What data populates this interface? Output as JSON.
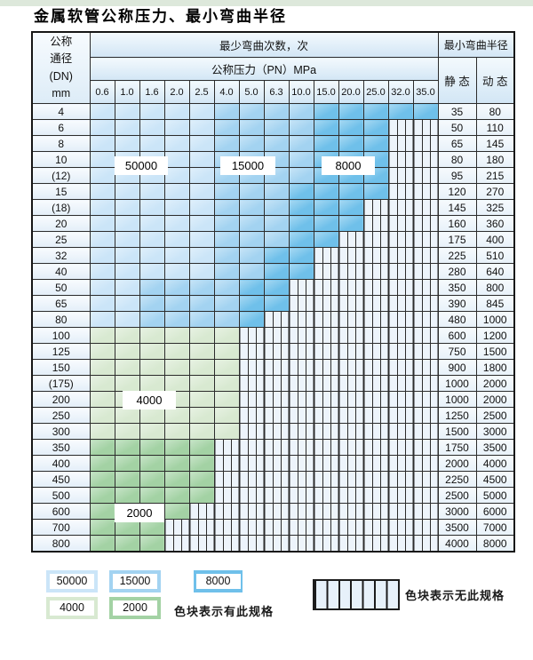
{
  "title": "金属软管公称压力、最小弯曲半径",
  "header": {
    "dn_lines": [
      "公称",
      "通径",
      "(DN)",
      "mm"
    ],
    "cycles": "最少弯曲次数，次",
    "pressure": "公称压力（PN）MPa",
    "radius": "最小弯曲半径",
    "static": "静 态",
    "dynamic": "动 态"
  },
  "spec_labels": {
    "b50": "50000",
    "b15": "15000",
    "b8": "8000",
    "g4": "4000",
    "g2": "2000"
  },
  "colors": {
    "b50": "#cbe5f8",
    "b15": "#a3d3f1",
    "b8": "#6fc0ea",
    "g4": "#d8e9d1",
    "g2": "#a3d2a4",
    "hatch_bg": "#edf4fb"
  },
  "legend": {
    "has_spec": "色块表示有此规格",
    "no_spec": "色块表示无此规格"
  },
  "chart_data": {
    "type": "table",
    "title": "金属软管公称压力、最小弯曲半径",
    "pn_columns_mpa": [
      "0.6",
      "1.0",
      "1.6",
      "2.0",
      "2.5",
      "4.0",
      "5.0",
      "6.3",
      "10.0",
      "15.0",
      "20.0",
      "25.0",
      "32.0",
      "35.0"
    ],
    "min_bend_cycles_values": {
      "b50": 50000,
      "b15": 15000,
      "b8": 8000,
      "g4": 4000,
      "g2": 2000
    },
    "legend_note_colored": "色块表示有此规格",
    "legend_note_hatched": "色块表示无此规格",
    "rows": [
      {
        "dn": "4",
        "static": "35",
        "dynamic": "80",
        "bands": [
          [
            5,
            "b50"
          ],
          [
            4,
            "b15"
          ],
          [
            5,
            "b8"
          ]
        ]
      },
      {
        "dn": "6",
        "static": "50",
        "dynamic": "110",
        "bands": [
          [
            5,
            "b50"
          ],
          [
            4,
            "b15"
          ],
          [
            3,
            "b8"
          ]
        ]
      },
      {
        "dn": "8",
        "static": "65",
        "dynamic": "145",
        "bands": [
          [
            5,
            "b50"
          ],
          [
            4,
            "b15"
          ],
          [
            3,
            "b8"
          ]
        ]
      },
      {
        "dn": "10",
        "static": "80",
        "dynamic": "180",
        "bands": [
          [
            5,
            "b50"
          ],
          [
            4,
            "b15"
          ],
          [
            3,
            "b8"
          ]
        ]
      },
      {
        "dn": "(12)",
        "static": "95",
        "dynamic": "215",
        "bands": [
          [
            5,
            "b50"
          ],
          [
            4,
            "b15"
          ],
          [
            3,
            "b8"
          ]
        ]
      },
      {
        "dn": "15",
        "static": "120",
        "dynamic": "270",
        "bands": [
          [
            5,
            "b50"
          ],
          [
            3,
            "b15"
          ],
          [
            4,
            "b8"
          ]
        ]
      },
      {
        "dn": "(18)",
        "static": "145",
        "dynamic": "325",
        "bands": [
          [
            5,
            "b50"
          ],
          [
            3,
            "b15"
          ],
          [
            3,
            "b8"
          ]
        ]
      },
      {
        "dn": "20",
        "static": "160",
        "dynamic": "360",
        "bands": [
          [
            5,
            "b50"
          ],
          [
            3,
            "b15"
          ],
          [
            3,
            "b8"
          ]
        ]
      },
      {
        "dn": "25",
        "static": "175",
        "dynamic": "400",
        "bands": [
          [
            5,
            "b50"
          ],
          [
            3,
            "b15"
          ],
          [
            2,
            "b8"
          ]
        ]
      },
      {
        "dn": "32",
        "static": "225",
        "dynamic": "510",
        "bands": [
          [
            5,
            "b50"
          ],
          [
            2,
            "b15"
          ],
          [
            2,
            "b8"
          ]
        ]
      },
      {
        "dn": "40",
        "static": "280",
        "dynamic": "640",
        "bands": [
          [
            5,
            "b50"
          ],
          [
            2,
            "b15"
          ],
          [
            2,
            "b8"
          ]
        ]
      },
      {
        "dn": "50",
        "static": "350",
        "dynamic": "800",
        "bands": [
          [
            2,
            "b50"
          ],
          [
            4,
            "b15"
          ],
          [
            2,
            "b8"
          ]
        ]
      },
      {
        "dn": "65",
        "static": "390",
        "dynamic": "845",
        "bands": [
          [
            2,
            "b50"
          ],
          [
            4,
            "b15"
          ],
          [
            2,
            "b8"
          ]
        ]
      },
      {
        "dn": "80",
        "static": "480",
        "dynamic": "1000",
        "bands": [
          [
            2,
            "b50"
          ],
          [
            4,
            "b15"
          ],
          [
            1,
            "b8"
          ]
        ]
      },
      {
        "dn": "100",
        "static": "600",
        "dynamic": "1200",
        "bands": [
          [
            6,
            "g4"
          ]
        ]
      },
      {
        "dn": "125",
        "static": "750",
        "dynamic": "1500",
        "bands": [
          [
            6,
            "g4"
          ]
        ]
      },
      {
        "dn": "150",
        "static": "900",
        "dynamic": "1800",
        "bands": [
          [
            6,
            "g4"
          ]
        ]
      },
      {
        "dn": "(175)",
        "static": "1000",
        "dynamic": "2000",
        "bands": [
          [
            6,
            "g4"
          ]
        ]
      },
      {
        "dn": "200",
        "static": "1000",
        "dynamic": "2000",
        "bands": [
          [
            6,
            "g4"
          ]
        ]
      },
      {
        "dn": "250",
        "static": "1250",
        "dynamic": "2500",
        "bands": [
          [
            6,
            "g4"
          ]
        ]
      },
      {
        "dn": "300",
        "static": "1500",
        "dynamic": "3000",
        "bands": [
          [
            6,
            "g4"
          ]
        ]
      },
      {
        "dn": "350",
        "static": "1750",
        "dynamic": "3500",
        "bands": [
          [
            5,
            "g2"
          ]
        ]
      },
      {
        "dn": "400",
        "static": "2000",
        "dynamic": "4000",
        "bands": [
          [
            5,
            "g2"
          ]
        ]
      },
      {
        "dn": "450",
        "static": "2250",
        "dynamic": "4500",
        "bands": [
          [
            5,
            "g2"
          ]
        ]
      },
      {
        "dn": "500",
        "static": "2500",
        "dynamic": "5000",
        "bands": [
          [
            5,
            "g2"
          ]
        ]
      },
      {
        "dn": "600",
        "static": "3000",
        "dynamic": "6000",
        "bands": [
          [
            4,
            "g2"
          ]
        ]
      },
      {
        "dn": "700",
        "static": "3500",
        "dynamic": "7000",
        "bands": [
          [
            3,
            "g2"
          ]
        ]
      },
      {
        "dn": "800",
        "static": "4000",
        "dynamic": "8000",
        "bands": [
          [
            3,
            "g2"
          ]
        ]
      }
    ]
  }
}
